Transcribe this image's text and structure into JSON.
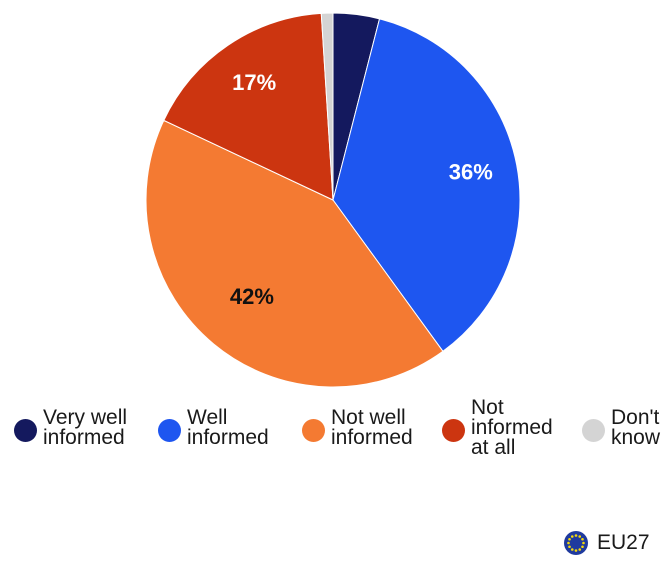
{
  "chart_data": {
    "type": "pie",
    "categories": [
      "Very well informed",
      "Well informed",
      "Not well informed",
      "Not informed at all",
      "Don't know"
    ],
    "values": [
      4,
      36,
      42,
      17,
      1
    ],
    "data_labels": [
      "",
      "36%",
      "42%",
      "17%",
      ""
    ],
    "colors": [
      "#14195e",
      "#1e56f0",
      "#f47a32",
      "#cc3510",
      "#d4d4d4"
    ],
    "label_colors": [
      "#ffffff",
      "#ffffff",
      "#111111",
      "#ffffff",
      "#111111"
    ],
    "legend": {
      "placement": "bottom",
      "entries": [
        "Very well\ninformed",
        "Well\ninformed",
        "Not well\ninformed",
        "Not\ninformed\nat all",
        "Don't\nknow"
      ]
    },
    "start_angle_deg": 0,
    "direction": "clockwise"
  },
  "footer": {
    "region_label": "EU27",
    "region_icon": "eu-flag-icon",
    "flag_colors": {
      "field": "#1f3a9e",
      "stars": "#f5d90a"
    }
  }
}
